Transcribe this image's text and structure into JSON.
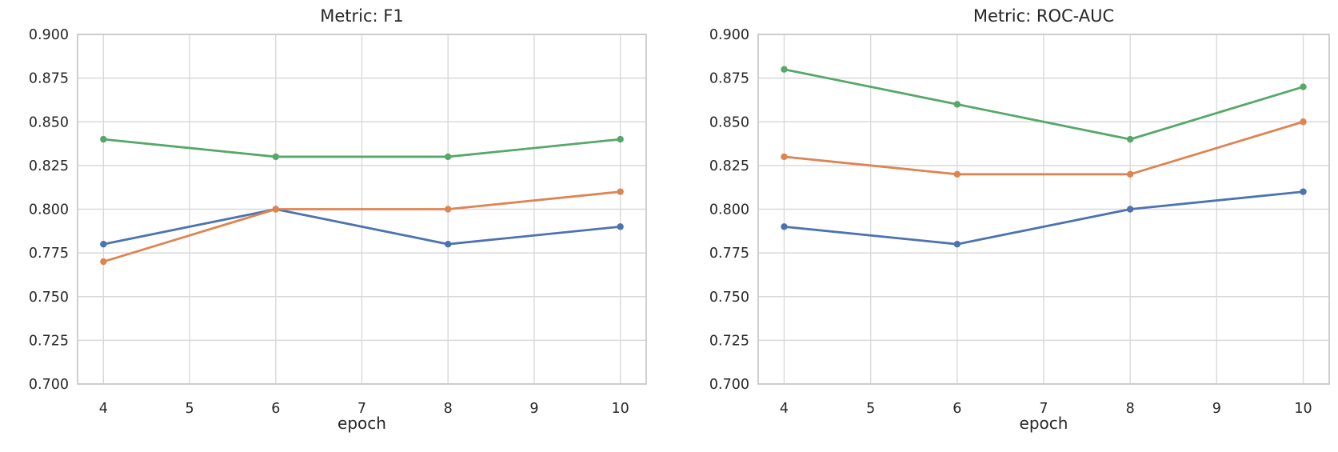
{
  "page": {
    "background": "#ffffff"
  },
  "colors": {
    "grid": "#d9d9d9",
    "spine": "#cacaca",
    "text": "#262626"
  },
  "chart_data": [
    {
      "type": "line",
      "title": "Metric: F1",
      "xlabel": "epoch",
      "ylabel": "",
      "x": [
        4,
        6,
        8,
        10
      ],
      "x_ticks": [
        4,
        5,
        6,
        7,
        8,
        9,
        10
      ],
      "y_ticks": [
        "0.700",
        "0.725",
        "0.750",
        "0.775",
        "0.800",
        "0.825",
        "0.850",
        "0.875",
        "0.900"
      ],
      "xlim": [
        3.7,
        10.3
      ],
      "ylim": [
        0.7,
        0.9
      ],
      "grid": true,
      "legend": "none",
      "marker": "circle",
      "series": [
        {
          "name": "blue",
          "color": "#4C72B0",
          "values": [
            0.78,
            0.8,
            0.78,
            0.79
          ]
        },
        {
          "name": "orange",
          "color": "#DD8452",
          "values": [
            0.77,
            0.8,
            0.8,
            0.81
          ]
        },
        {
          "name": "green",
          "color": "#55A868",
          "values": [
            0.84,
            0.83,
            0.83,
            0.84
          ]
        }
      ]
    },
    {
      "type": "line",
      "title": "Metric: ROC-AUC",
      "xlabel": "epoch",
      "ylabel": "",
      "x": [
        4,
        6,
        8,
        10
      ],
      "x_ticks": [
        4,
        5,
        6,
        7,
        8,
        9,
        10
      ],
      "y_ticks": [
        "0.700",
        "0.725",
        "0.750",
        "0.775",
        "0.800",
        "0.825",
        "0.850",
        "0.875",
        "0.900"
      ],
      "xlim": [
        3.7,
        10.3
      ],
      "ylim": [
        0.7,
        0.9
      ],
      "grid": true,
      "legend": "none",
      "marker": "circle",
      "series": [
        {
          "name": "blue",
          "color": "#4C72B0",
          "values": [
            0.79,
            0.78,
            0.8,
            0.81
          ]
        },
        {
          "name": "orange",
          "color": "#DD8452",
          "values": [
            0.83,
            0.82,
            0.82,
            0.85
          ]
        },
        {
          "name": "green",
          "color": "#55A868",
          "values": [
            0.88,
            0.86,
            0.84,
            0.87
          ]
        }
      ]
    }
  ]
}
